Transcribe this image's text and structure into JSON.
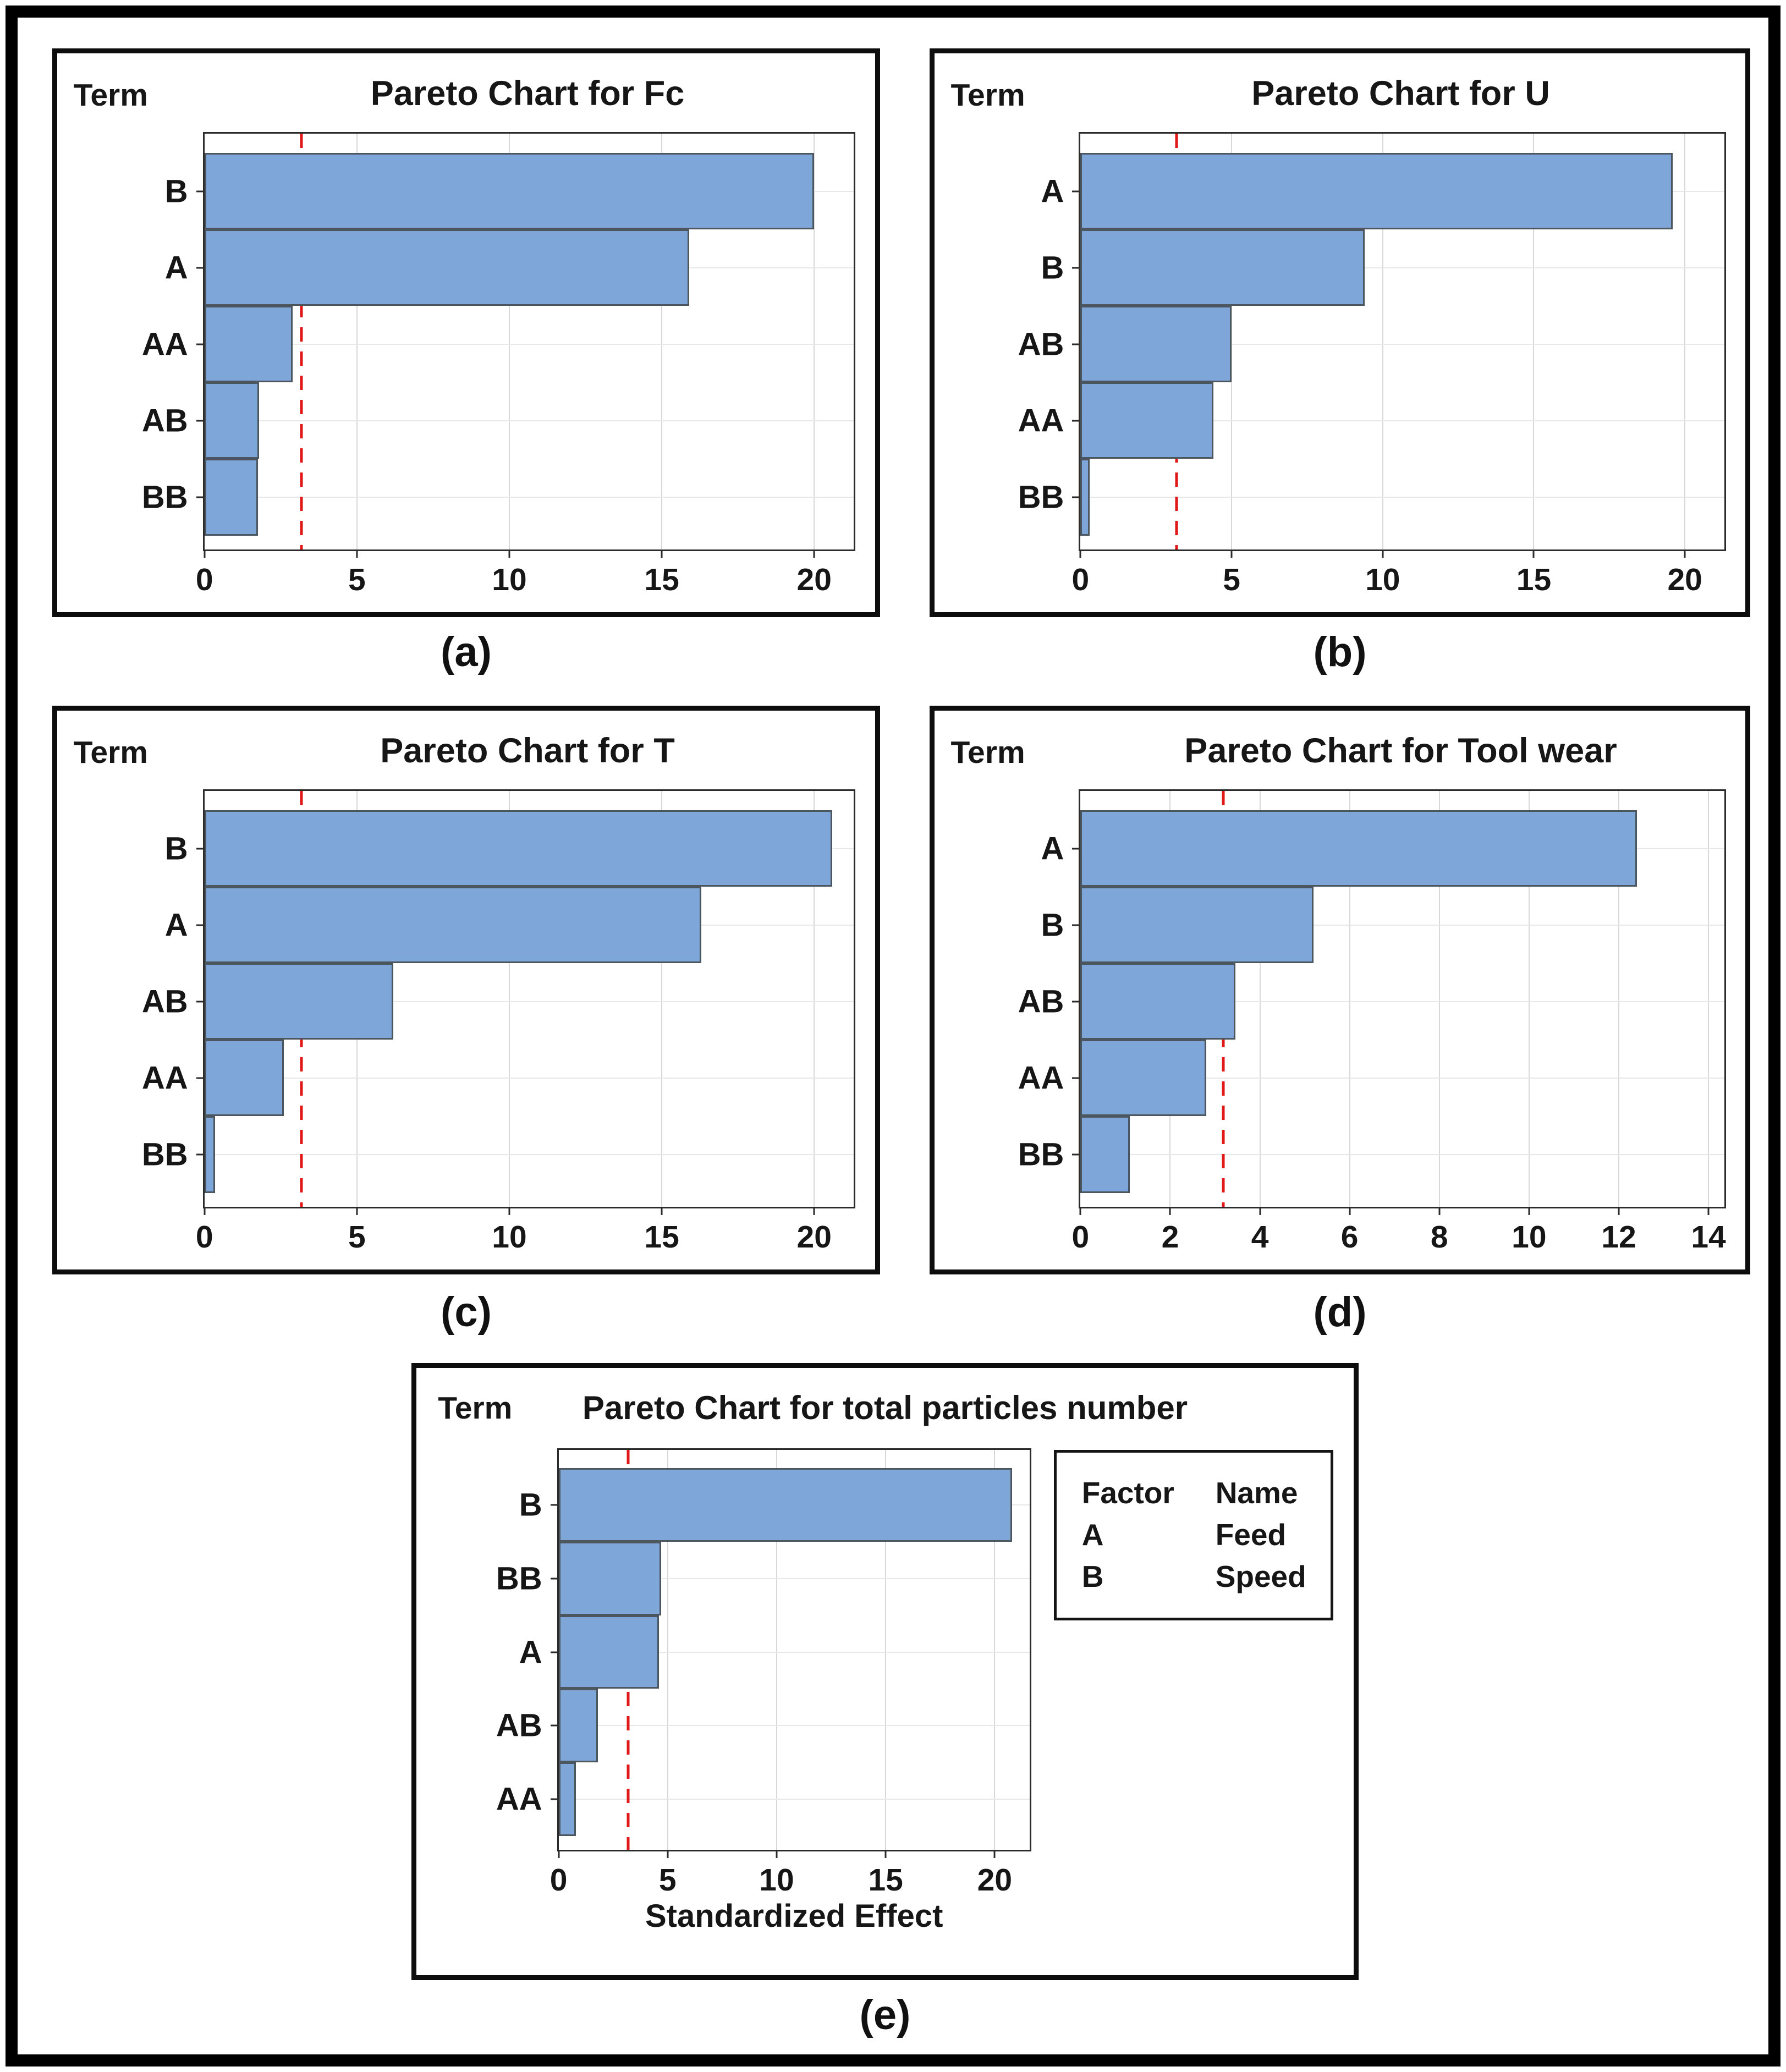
{
  "styles": {
    "bar_fill": "#7ea6d8",
    "bar_border": "#4c565f",
    "reference_line_color": "#e01818",
    "gridline_color": "#d8d8d8"
  },
  "chart_data": [
    {
      "panel": "a",
      "type": "bar",
      "orientation": "horizontal",
      "title": "Pareto Chart for Fc",
      "y_axis_label": "Term",
      "categories": [
        "B",
        "A",
        "AA",
        "AB",
        "BB"
      ],
      "values": [
        20.0,
        15.9,
        2.9,
        1.8,
        1.75
      ],
      "reference_line": 3.18,
      "x_ticks": [
        0,
        5,
        10,
        15,
        20
      ],
      "xlim": [
        0,
        21.3
      ],
      "grid": true,
      "caption": "(a)"
    },
    {
      "panel": "b",
      "type": "bar",
      "orientation": "horizontal",
      "title": "Pareto Chart for U",
      "y_axis_label": "Term",
      "categories": [
        "A",
        "B",
        "AB",
        "AA",
        "BB"
      ],
      "values": [
        19.6,
        9.4,
        5.0,
        4.4,
        0.3
      ],
      "reference_line": 3.18,
      "x_ticks": [
        0,
        5,
        10,
        15,
        20
      ],
      "xlim": [
        0,
        21.3
      ],
      "grid": true,
      "caption": "(b)"
    },
    {
      "panel": "c",
      "type": "bar",
      "orientation": "horizontal",
      "title": "Pareto Chart for T",
      "y_axis_label": "Term",
      "categories": [
        "B",
        "A",
        "AB",
        "AA",
        "BB"
      ],
      "values": [
        20.6,
        16.3,
        6.2,
        2.6,
        0.35
      ],
      "reference_line": 3.18,
      "x_ticks": [
        0,
        5,
        10,
        15,
        20
      ],
      "xlim": [
        0,
        21.3
      ],
      "grid": true,
      "caption": "(c)"
    },
    {
      "panel": "d",
      "type": "bar",
      "orientation": "horizontal",
      "title": "Pareto Chart for Tool wear",
      "y_axis_label": "Term",
      "categories": [
        "A",
        "B",
        "AB",
        "AA",
        "BB"
      ],
      "values": [
        12.4,
        5.2,
        3.45,
        2.8,
        1.1
      ],
      "reference_line": 3.18,
      "x_ticks": [
        0,
        2,
        4,
        6,
        8,
        10,
        12,
        14
      ],
      "xlim": [
        0,
        14.35
      ],
      "grid": true,
      "caption": "(d)"
    },
    {
      "panel": "e",
      "type": "bar",
      "orientation": "horizontal",
      "title": "Pareto Chart for total particles number",
      "y_axis_label": "Term",
      "xlabel": "Standardized Effect",
      "categories": [
        "B",
        "BB",
        "A",
        "AB",
        "AA"
      ],
      "values": [
        20.8,
        4.7,
        4.6,
        1.8,
        0.8
      ],
      "reference_line": 3.18,
      "x_ticks": [
        0,
        5,
        10,
        15,
        20
      ],
      "xlim": [
        0,
        21.6
      ],
      "grid": true,
      "caption": "(e)",
      "legend": {
        "headers": [
          "Factor",
          "Name"
        ],
        "rows": [
          [
            "A",
            "Feed"
          ],
          [
            "B",
            "Speed"
          ]
        ]
      }
    }
  ]
}
